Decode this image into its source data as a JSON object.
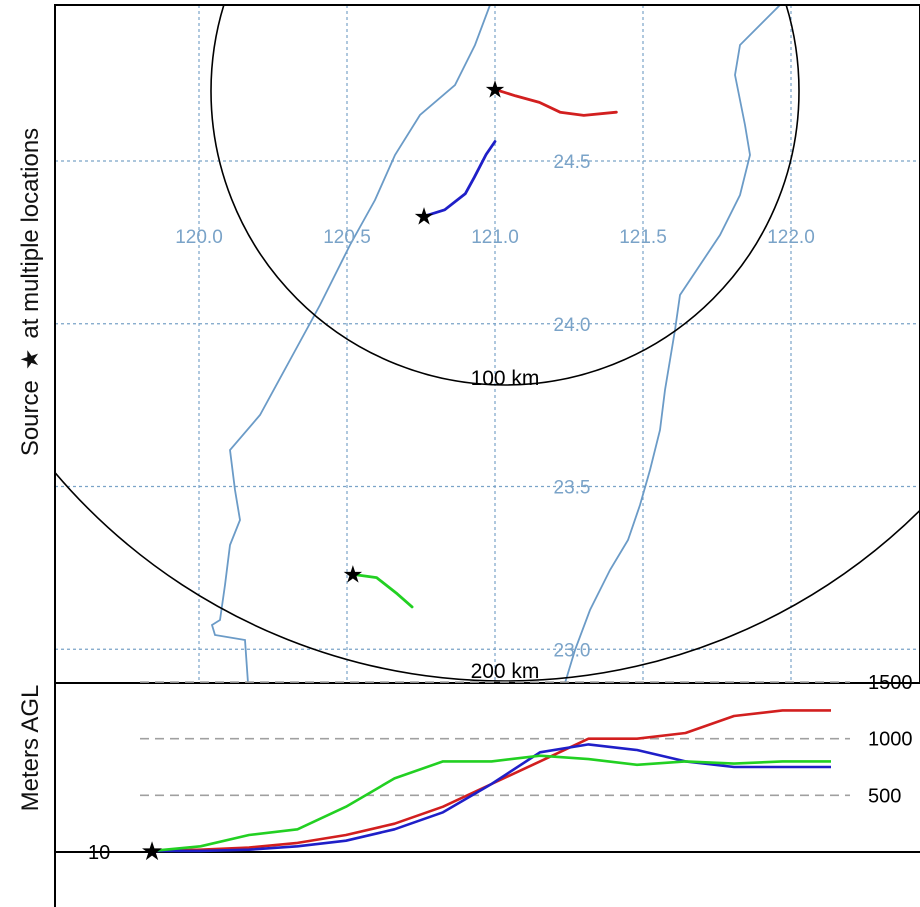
{
  "map": {
    "y_axis_label_prefix": "Source",
    "y_axis_label_suffix": "at multiple locations",
    "star_glyph": "★",
    "lon_labels": [
      "120.0",
      "120.5",
      "121.0",
      "121.5",
      "122.0"
    ],
    "lat_labels": [
      "24.5",
      "24.0",
      "23.5",
      "23.0"
    ],
    "range_rings": [
      "100 km",
      "200 km"
    ],
    "grid_color": "#7aa3c8",
    "coast_color": "#6b9bc7",
    "trajectories": [
      {
        "id": "red",
        "color": "#d21f1f",
        "source": {
          "lon": 121.0,
          "lat": 24.72
        },
        "path": [
          [
            121.0,
            24.72
          ],
          [
            121.07,
            24.7
          ],
          [
            121.15,
            24.68
          ],
          [
            121.22,
            24.65
          ],
          [
            121.3,
            24.64
          ],
          [
            121.41,
            24.65
          ]
        ]
      },
      {
        "id": "blue",
        "color": "#1f1fc8",
        "source": {
          "lon": 120.76,
          "lat": 24.33
        },
        "path": [
          [
            120.76,
            24.33
          ],
          [
            120.83,
            24.35
          ],
          [
            120.9,
            24.4
          ],
          [
            120.93,
            24.45
          ],
          [
            120.97,
            24.52
          ],
          [
            121.0,
            24.56
          ]
        ]
      },
      {
        "id": "green",
        "color": "#22d022",
        "source": {
          "lon": 120.52,
          "lat": 23.23
        },
        "path": [
          [
            120.52,
            23.23
          ],
          [
            120.6,
            23.22
          ],
          [
            120.67,
            23.17
          ],
          [
            120.72,
            23.13
          ]
        ]
      }
    ]
  },
  "profile": {
    "y_axis_label": "Meters AGL",
    "release_height_label": "10",
    "height_levels": [
      {
        "value": 1500,
        "label": "1500"
      },
      {
        "value": 1000,
        "label": "1000"
      },
      {
        "value": 500,
        "label": "500"
      }
    ],
    "series": [
      {
        "id": "red",
        "color": "#d21f1f",
        "values": [
          10,
          20,
          40,
          80,
          150,
          250,
          400,
          600,
          800,
          1000,
          1000,
          1050,
          1200,
          1250,
          1250
        ]
      },
      {
        "id": "blue",
        "color": "#1f1fc8",
        "values": [
          10,
          10,
          20,
          50,
          100,
          200,
          350,
          600,
          880,
          950,
          900,
          800,
          750,
          750,
          750
        ]
      },
      {
        "id": "green",
        "color": "#22d022",
        "values": [
          10,
          50,
          150,
          200,
          400,
          650,
          800,
          800,
          850,
          820,
          770,
          800,
          780,
          800,
          800
        ]
      }
    ]
  }
}
